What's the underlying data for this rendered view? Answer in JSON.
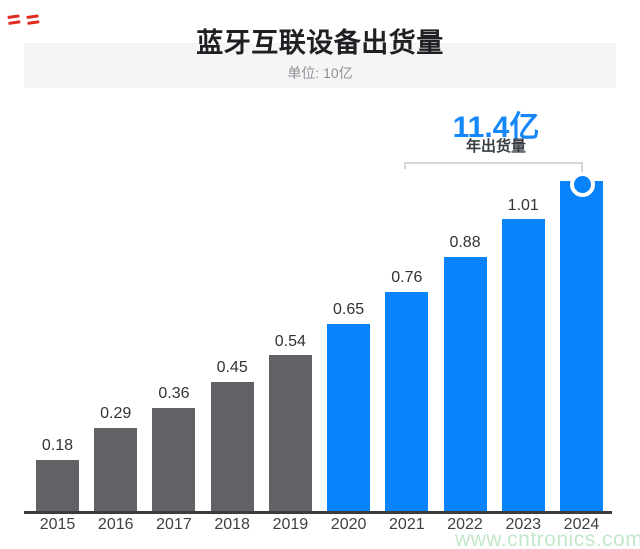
{
  "header": {
    "title": "蓝牙互联设备出货量",
    "subtitle": "单位: 10亿"
  },
  "annotation": {
    "headline": "11.4亿",
    "label": "年出货量"
  },
  "watermark": "www.cntronics.com",
  "colors": {
    "bar_past": "#616265",
    "bar_highlight": "#0884fb",
    "accent_text": "#1487fb",
    "header_band": "#f5f5f6",
    "watermark_green": "#c2e7c9",
    "corner_mark_red": "#e02b1f"
  },
  "chart_data": {
    "type": "bar",
    "title": "蓝牙互联设备出货量",
    "subtitle": "单位: 10亿",
    "unit": "10亿",
    "categories": [
      "2015",
      "2016",
      "2017",
      "2018",
      "2019",
      "2020",
      "2021",
      "2022",
      "2023",
      "2024"
    ],
    "values": [
      0.18,
      0.29,
      0.36,
      0.45,
      0.54,
      0.65,
      0.76,
      0.88,
      1.01,
      1.14
    ],
    "bar_labels": [
      "0.18",
      "0.29",
      "0.36",
      "0.45",
      "0.54",
      "0.65",
      "0.76",
      "0.88",
      "1.01",
      ""
    ],
    "highlight_from_index": 5,
    "annotation": {
      "text": "11.4亿",
      "sub": "年出货量",
      "points_to": "2024"
    },
    "xlabel": "",
    "ylabel": "",
    "ylim": [
      0,
      1.25
    ],
    "grid": false,
    "legend": "none",
    "series_colors": {
      "past_years": "#616265",
      "recent_years": "#0884fb"
    }
  }
}
